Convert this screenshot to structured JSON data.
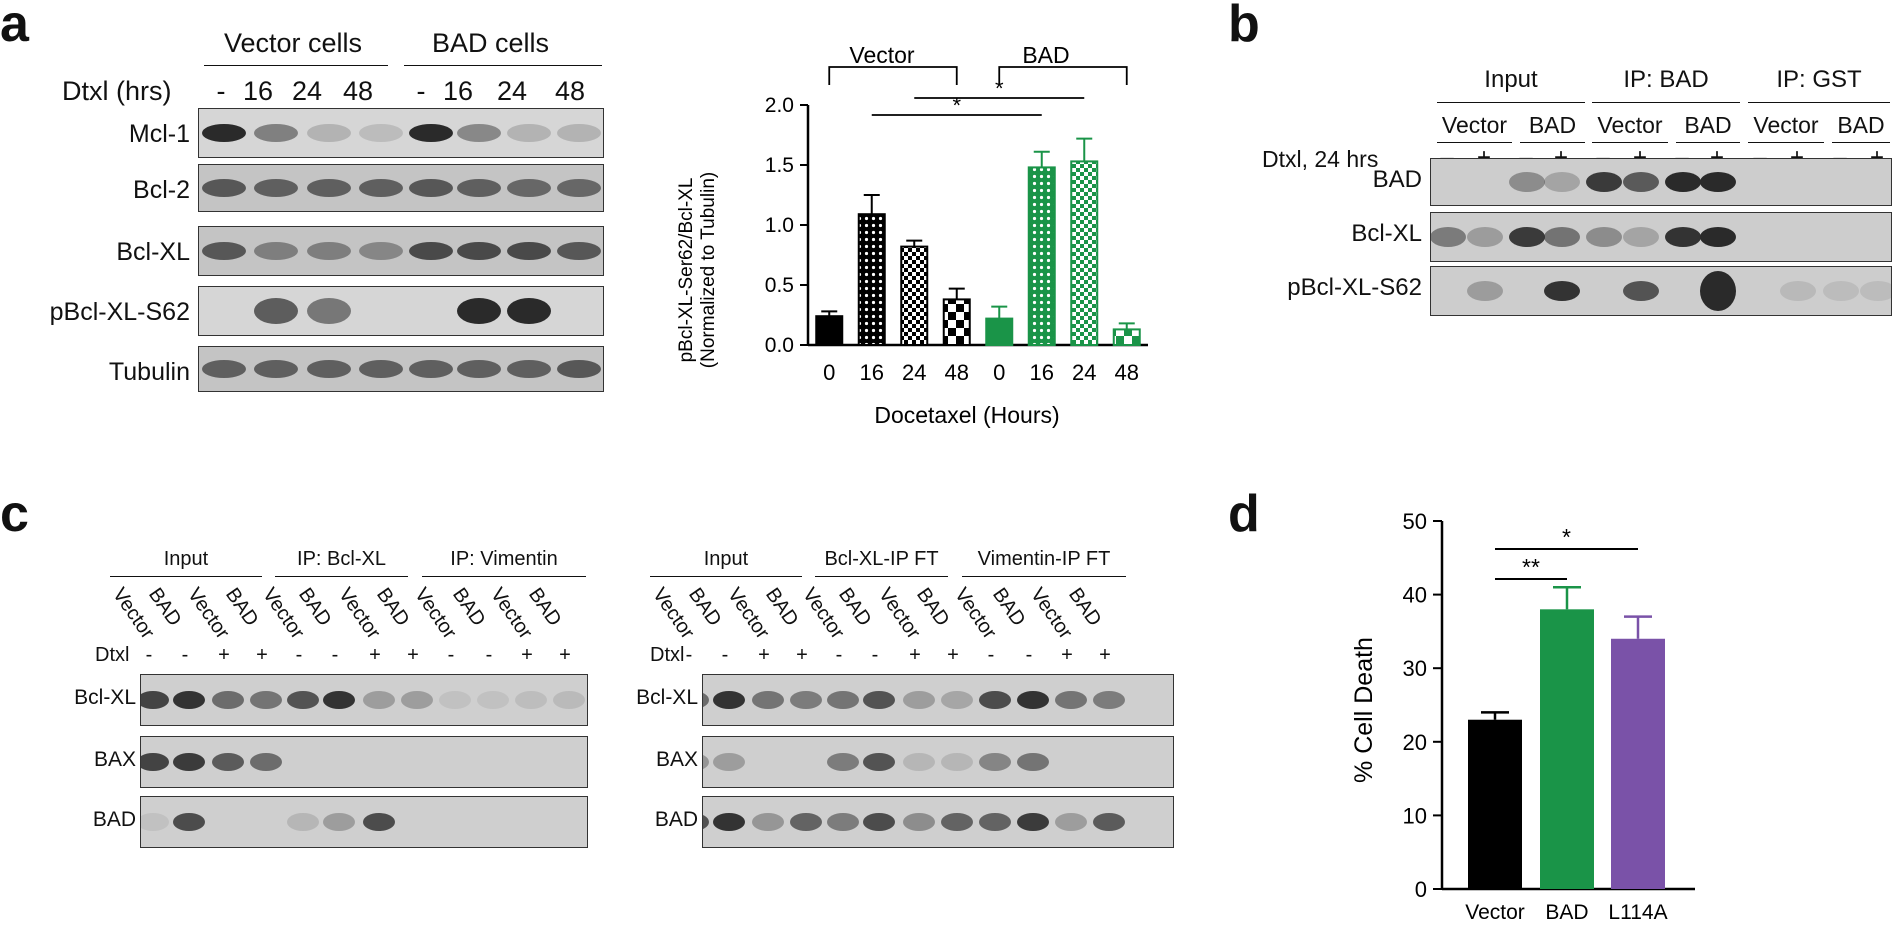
{
  "panel_labels": {
    "a": "a",
    "b": "b",
    "c": "c",
    "d": "d"
  },
  "a": {
    "groups": [
      "Vector cells",
      "BAD cells"
    ],
    "time_label": "Dtxl (hrs)",
    "time_values": [
      "-",
      "16",
      "24",
      "48",
      "-",
      "16",
      "24",
      "48"
    ],
    "rows": [
      "Mcl-1",
      "Bcl-2",
      "Bcl-XL",
      "pBcl-XL-S62",
      "Tubulin"
    ]
  },
  "b": {
    "headers": [
      "Input",
      "IP: BAD",
      "IP: GST"
    ],
    "subheaders": [
      "Vector",
      "BAD",
      "Vector",
      "BAD",
      "Vector",
      "BAD"
    ],
    "dtxl_label": "Dtxl, 24 hrs",
    "signs": [
      "–",
      "+",
      "–",
      "+",
      "–",
      "+",
      "–",
      "+",
      "–",
      "+",
      "–",
      "+"
    ],
    "rows": [
      "BAD",
      "Bcl-XL",
      "pBcl-XL-S62"
    ]
  },
  "c": {
    "left_headers": [
      "Input",
      "IP: Bcl-XL",
      "IP: Vimentin"
    ],
    "right_headers": [
      "Input",
      "Bcl-XL-IP FT",
      "Vimentin-IP FT"
    ],
    "lanes": [
      "Vector",
      "BAD",
      "Vector",
      "BAD",
      "Vector",
      "BAD",
      "Vector",
      "BAD",
      "Vector",
      "BAD",
      "Vector",
      "BAD"
    ],
    "dtxl_label": "Dtxl",
    "signs": [
      "-",
      "-",
      "+",
      "+",
      "-",
      "-",
      "+",
      "+",
      "-",
      "-",
      "+",
      "+"
    ],
    "rows": [
      "Bcl-XL",
      "BAX",
      "BAD"
    ]
  },
  "chart_data": [
    {
      "panel": "a",
      "type": "bar",
      "categories": [
        "0",
        "16",
        "24",
        "48",
        "0",
        "16",
        "24",
        "48"
      ],
      "values": [
        0.24,
        1.09,
        0.82,
        0.38,
        0.22,
        1.48,
        1.53,
        0.13
      ],
      "errors": [
        0.04,
        0.16,
        0.05,
        0.09,
        0.1,
        0.13,
        0.19,
        0.05
      ],
      "groups": [
        "Vector",
        "Vector",
        "Vector",
        "Vector",
        "BAD",
        "BAD",
        "BAD",
        "BAD"
      ],
      "group_labels": [
        "Vector",
        "BAD"
      ],
      "colors": [
        "#000000",
        "#000000",
        "#000000",
        "#000000",
        "#1a9448",
        "#1a9448",
        "#1a9448",
        "#1a9448"
      ],
      "patterns": [
        "solid",
        "dots",
        "check",
        "bigcheck",
        "solid",
        "dots",
        "check",
        "bigcheck"
      ],
      "ylabel_line1": "pBcl-XL-Ser62/Bcl-XL",
      "ylabel_line2": "(Normalized to Tubulin)",
      "xlabel": "Docetaxel (Hours)",
      "ylim": [
        0,
        2.0
      ],
      "yticks": [
        "0.0",
        "0.5",
        "1.0",
        "1.5",
        "2.0"
      ],
      "significance": [
        "*",
        "*"
      ]
    },
    {
      "panel": "d",
      "type": "bar",
      "categories": [
        "Vector",
        "BAD",
        "L114A"
      ],
      "values": [
        23,
        38,
        34
      ],
      "errors": [
        1,
        3,
        3
      ],
      "colors": [
        "#000000",
        "#1a9448",
        "#7a52a8"
      ],
      "ylabel": "% Cell Death",
      "ylim": [
        0,
        50
      ],
      "yticks": [
        "0",
        "10",
        "20",
        "30",
        "40",
        "50"
      ],
      "significance": [
        "**",
        "*"
      ]
    }
  ]
}
